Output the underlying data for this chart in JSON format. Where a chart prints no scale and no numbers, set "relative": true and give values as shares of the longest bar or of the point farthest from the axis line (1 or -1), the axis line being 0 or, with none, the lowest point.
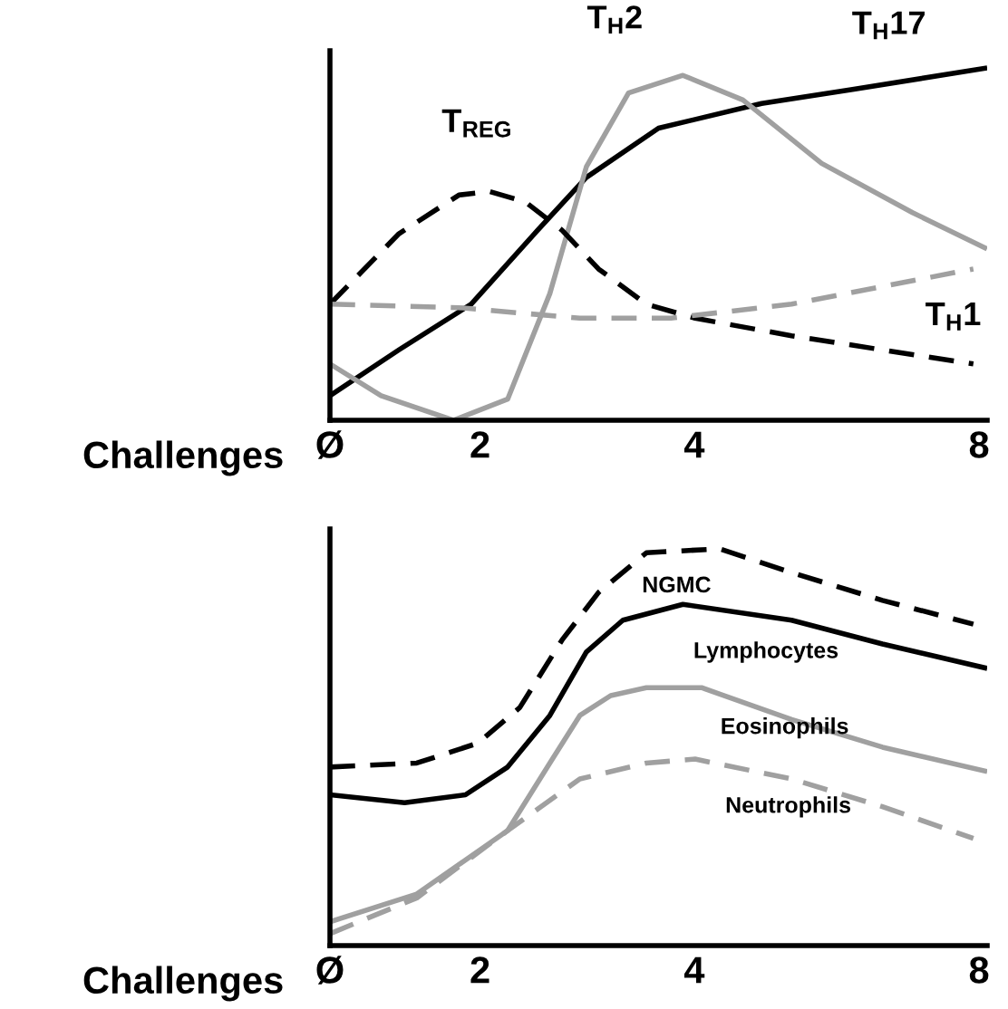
{
  "chart_data": [
    {
      "type": "line",
      "relative": true,
      "xlabel": "Challenges",
      "xlim": [
        0,
        8.1
      ],
      "xticks": [
        {
          "value": 0,
          "label": "Ø"
        },
        {
          "value": 1.85,
          "label": "2"
        },
        {
          "value": 4.49,
          "label": "4"
        },
        {
          "value": 8,
          "label": "8"
        }
      ],
      "grid": false,
      "legend": false,
      "marker": "none",
      "series": [
        {
          "name": "T$_{H}$17",
          "color": "#000000",
          "line_style": "solid",
          "x": [
            0,
            0.85,
            1.74,
            2.56,
            3.16,
            4.05,
            5.32,
            6.44,
            8.07
          ],
          "values": [
            0.07,
            0.2,
            0.33,
            0.54,
            0.69,
            0.83,
            0.9,
            0.94,
            1.0
          ]
        },
        {
          "name": "T$_{H}$2",
          "color": "#a0a0a0",
          "line_style": "solid",
          "x": [
            0,
            0.63,
            1.52,
            2.19,
            2.71,
            3.16,
            3.68,
            4.35,
            5.09,
            6.06,
            7.18,
            8.07
          ],
          "values": [
            0.16,
            0.07,
            0,
            0.06,
            0.36,
            0.72,
            0.93,
            0.98,
            0.91,
            0.73,
            0.59,
            0.49
          ]
        },
        {
          "name": "T$_{REG}$",
          "color": "#000000",
          "line_style": "dashed",
          "x": [
            0,
            0.85,
            1.59,
            1.97,
            2.41,
            2.86,
            3.31,
            3.9,
            4.5,
            5.69,
            7.93
          ],
          "values": [
            0.33,
            0.53,
            0.64,
            0.65,
            0.62,
            0.54,
            0.43,
            0.33,
            0.29,
            0.24,
            0.16
          ]
        },
        {
          "name": "T$_{H}$1",
          "color": "#a0a0a0",
          "line_style": "dashed",
          "x": [
            0,
            1.59,
            3.08,
            4.2,
            5.69,
            7.93
          ],
          "values": [
            0.33,
            0.32,
            0.29,
            0.29,
            0.33,
            0.43
          ]
        }
      ]
    },
    {
      "type": "line",
      "relative": true,
      "xlabel": "Challenges",
      "xlim": [
        0,
        8.1
      ],
      "xticks": [
        {
          "value": 0,
          "label": "Ø"
        },
        {
          "value": 1.85,
          "label": "2"
        },
        {
          "value": 4.49,
          "label": "4"
        },
        {
          "value": 8,
          "label": "8"
        }
      ],
      "grid": false,
      "legend": false,
      "marker": "none",
      "series": [
        {
          "name": "NGMC",
          "color": "#000000",
          "line_style": "dashed",
          "x": [
            0,
            1.07,
            1.82,
            2.34,
            2.86,
            3.31,
            3.9,
            4.8,
            5.69,
            6.81,
            7.93
          ],
          "values": [
            0.45,
            0.46,
            0.51,
            0.6,
            0.77,
            0.89,
            0.99,
            1.0,
            0.94,
            0.87,
            0.81
          ]
        },
        {
          "name": "Lymphocytes",
          "color": "#000000",
          "line_style": "solid",
          "x": [
            0,
            0.92,
            1.67,
            2.19,
            2.71,
            3.16,
            3.61,
            4.35,
            5.69,
            6.81,
            8.07
          ],
          "values": [
            0.38,
            0.36,
            0.38,
            0.45,
            0.58,
            0.74,
            0.82,
            0.86,
            0.82,
            0.76,
            0.7
          ]
        },
        {
          "name": "Eosinophils",
          "color": "#a0a0a0",
          "line_style": "solid",
          "x": [
            0,
            1.07,
            2.19,
            2.71,
            3.08,
            3.46,
            3.9,
            4.58,
            5.69,
            6.81,
            8.07
          ],
          "values": [
            0.06,
            0.13,
            0.29,
            0.46,
            0.58,
            0.63,
            0.65,
            0.65,
            0.57,
            0.5,
            0.44
          ]
        },
        {
          "name": "Neutrophils",
          "color": "#a0a0a0",
          "line_style": "dashed",
          "x": [
            0,
            1.07,
            2.19,
            3.08,
            3.9,
            4.5,
            5.69,
            6.81,
            7.93
          ],
          "values": [
            0.03,
            0.12,
            0.29,
            0.42,
            0.46,
            0.47,
            0.42,
            0.35,
            0.27
          ]
        }
      ]
    }
  ]
}
